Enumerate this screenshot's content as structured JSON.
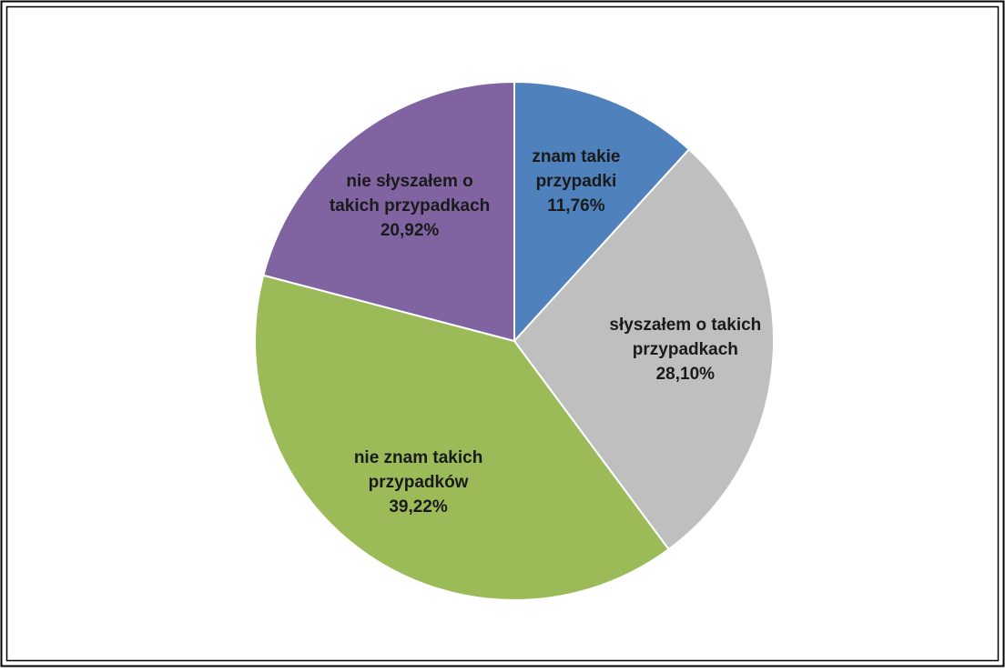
{
  "chart_data": {
    "type": "pie",
    "categories": [
      "znam takie przypadki",
      "słyszałem o takich przypadkach",
      "nie znam takich przypadków",
      "nie słyszałem o takich przypadkach"
    ],
    "values": [
      11.76,
      28.1,
      39.22,
      20.92
    ],
    "value_labels": [
      "11,76%",
      "28,10%",
      "39,22%",
      "20,92%"
    ],
    "colors": [
      "#4f81bd",
      "#bfbfbf",
      "#9bbb59",
      "#8064a2"
    ]
  }
}
